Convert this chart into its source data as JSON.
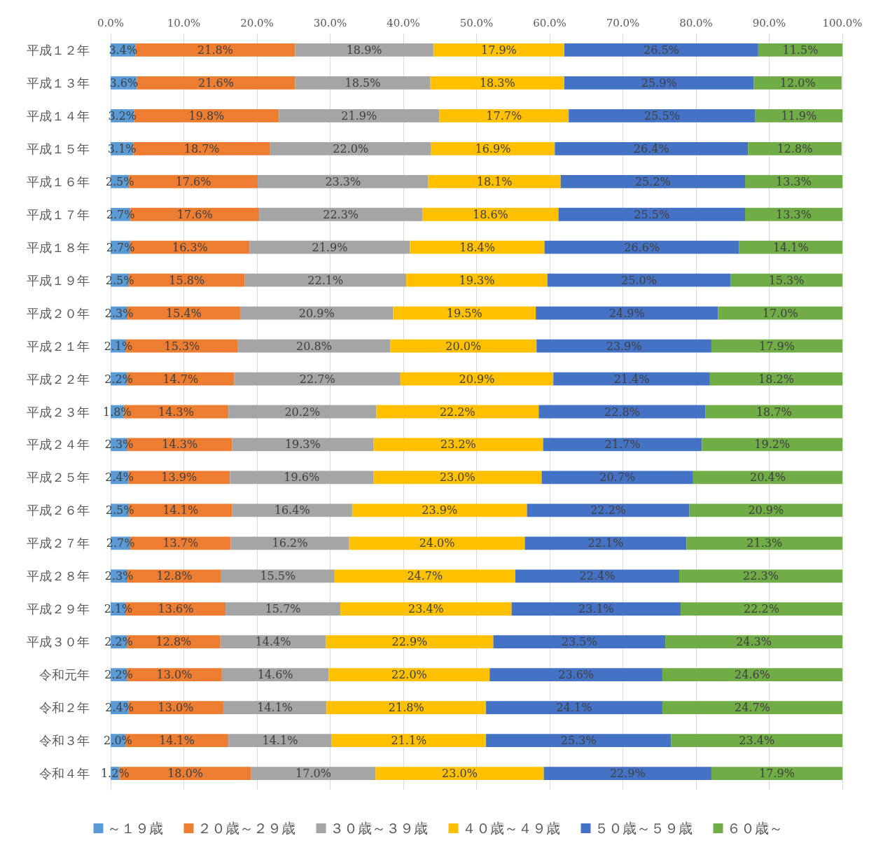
{
  "chart_data": {
    "type": "bar",
    "orientation": "horizontal",
    "stacked": true,
    "grid": "x",
    "legend": "bottom",
    "categories": [
      "平成１２年",
      "平成１３年",
      "平成１４年",
      "平成１５年",
      "平成１６年",
      "平成１７年",
      "平成１８年",
      "平成１９年",
      "平成２０年",
      "平成２１年",
      "平成２２年",
      "平成２３年",
      "平成２４年",
      "平成２５年",
      "平成２６年",
      "平成２７年",
      "平成２８年",
      "平成２９年",
      "平成３０年",
      "令和元年",
      "令和２年",
      "令和３年",
      "令和４年"
    ],
    "xlim": [
      0,
      100
    ],
    "xticks": [
      {
        "value": 0,
        "label": "0.0%"
      },
      {
        "value": 10,
        "label": "10.0%"
      },
      {
        "value": 20,
        "label": "20.0%"
      },
      {
        "value": 30,
        "label": "30.0%"
      },
      {
        "value": 40,
        "label": "40.0%"
      },
      {
        "value": 50,
        "label": "50.0%"
      },
      {
        "value": 60,
        "label": "60.0%"
      },
      {
        "value": 70,
        "label": "70.0%"
      },
      {
        "value": 80,
        "label": "80.0%"
      },
      {
        "value": 90,
        "label": "90.0%"
      },
      {
        "value": 100,
        "label": "100.0%"
      }
    ],
    "series": [
      {
        "name": "～１９歳",
        "color": "#5b9bd5",
        "values": [
          3.4,
          3.6,
          3.2,
          3.1,
          2.5,
          2.7,
          2.7,
          2.5,
          2.3,
          2.1,
          2.2,
          1.8,
          2.3,
          2.4,
          2.5,
          2.7,
          2.3,
          2.1,
          2.2,
          2.2,
          2.4,
          2.0,
          1.2
        ],
        "value_labels": [
          "3.4%",
          "3.6%",
          "3.2%",
          "3.1%",
          "2.5%",
          "2.7%",
          "2.7%",
          "2.5%",
          "2.3%",
          "2.1%",
          "2.2%",
          "1.8%",
          "2.3%",
          "2.4%",
          "2.5%",
          "2.7%",
          "2.3%",
          "2.1%",
          "2.2%",
          "2.2%",
          "2.4%",
          "2.0%",
          "1.2%"
        ]
      },
      {
        "name": "２０歳～２９歳",
        "color": "#ed7d31",
        "values": [
          21.8,
          21.6,
          19.8,
          18.7,
          17.6,
          17.6,
          16.3,
          15.8,
          15.4,
          15.3,
          14.7,
          14.3,
          14.3,
          13.9,
          14.1,
          13.7,
          12.8,
          13.6,
          12.8,
          13.0,
          13.0,
          14.1,
          18.0
        ],
        "value_labels": [
          "21.8%",
          "21.6%",
          "19.8%",
          "18.7%",
          "17.6%",
          "17.6%",
          "16.3%",
          "15.8%",
          "15.4%",
          "15.3%",
          "14.7%",
          "14.3%",
          "14.3%",
          "13.9%",
          "14.1%",
          "13.7%",
          "12.8%",
          "13.6%",
          "12.8%",
          "13.0%",
          "13.0%",
          "14.1%",
          "18.0%"
        ]
      },
      {
        "name": "３０歳～３９歳",
        "color": "#a5a5a5",
        "values": [
          18.9,
          18.5,
          21.9,
          22.0,
          23.3,
          22.3,
          21.9,
          22.1,
          20.9,
          20.8,
          22.7,
          20.2,
          19.3,
          19.6,
          16.4,
          16.2,
          15.5,
          15.7,
          14.4,
          14.6,
          14.1,
          14.1,
          17.0
        ],
        "value_labels": [
          "18.9%",
          "18.5%",
          "21.9%",
          "22.0%",
          "23.3%",
          "22.3%",
          "21.9%",
          "22.1%",
          "20.9%",
          "20.8%",
          "22.7%",
          "20.2%",
          "19.3%",
          "19.6%",
          "16.4%",
          "16.2%",
          "15.5%",
          "15.7%",
          "14.4%",
          "14.6%",
          "14.1%",
          "14.1%",
          "17.0%"
        ]
      },
      {
        "name": "４０歳～４９歳",
        "color": "#ffc000",
        "values": [
          17.9,
          18.3,
          17.7,
          16.9,
          18.1,
          18.6,
          18.4,
          19.3,
          19.5,
          20.0,
          20.9,
          22.2,
          23.2,
          23.0,
          23.9,
          24.0,
          24.7,
          23.4,
          22.9,
          22.0,
          21.8,
          21.1,
          23.0
        ],
        "value_labels": [
          "17.9%",
          "18.3%",
          "17.7%",
          "16.9%",
          "18.1%",
          "18.6%",
          "18.4%",
          "19.3%",
          "19.5%",
          "20.0%",
          "20.9%",
          "22.2%",
          "23.2%",
          "23.0%",
          "23.9%",
          "24.0%",
          "24.7%",
          "23.4%",
          "22.9%",
          "22.0%",
          "21.8%",
          "21.1%",
          "23.0%"
        ]
      },
      {
        "name": "５０歳～５９歳",
        "color": "#4472c4",
        "values": [
          26.5,
          25.9,
          25.5,
          26.4,
          25.2,
          25.5,
          26.6,
          25.0,
          24.9,
          23.9,
          21.4,
          22.8,
          21.7,
          20.7,
          22.2,
          22.1,
          22.4,
          23.1,
          23.5,
          23.6,
          24.1,
          25.3,
          22.9
        ],
        "value_labels": [
          "26.5%",
          "25.9%",
          "25.5%",
          "26.4%",
          "25.2%",
          "25.5%",
          "26.6%",
          "25.0%",
          "24.9%",
          "23.9%",
          "21.4%",
          "22.8%",
          "21.7%",
          "20.7%",
          "22.2%",
          "22.1%",
          "22.4%",
          "23.1%",
          "23.5%",
          "23.6%",
          "24.1%",
          "25.3%",
          "22.9%"
        ]
      },
      {
        "name": "６０歳～",
        "color": "#70ad47",
        "values": [
          11.5,
          12.0,
          11.9,
          12.8,
          13.3,
          13.3,
          14.1,
          15.3,
          17.0,
          17.9,
          18.2,
          18.7,
          19.2,
          20.4,
          20.9,
          21.3,
          22.3,
          22.2,
          24.3,
          24.6,
          24.7,
          23.4,
          17.9
        ],
        "value_labels": [
          "11.5%",
          "12.0%",
          "11.9%",
          "12.8%",
          "13.3%",
          "13.3%",
          "14.1%",
          "15.3%",
          "17.0%",
          "17.9%",
          "18.2%",
          "18.7%",
          "19.2%",
          "20.4%",
          "20.9%",
          "21.3%",
          "22.3%",
          "22.2%",
          "24.3%",
          "24.6%",
          "24.7%",
          "23.4%",
          "17.9%"
        ]
      }
    ]
  }
}
